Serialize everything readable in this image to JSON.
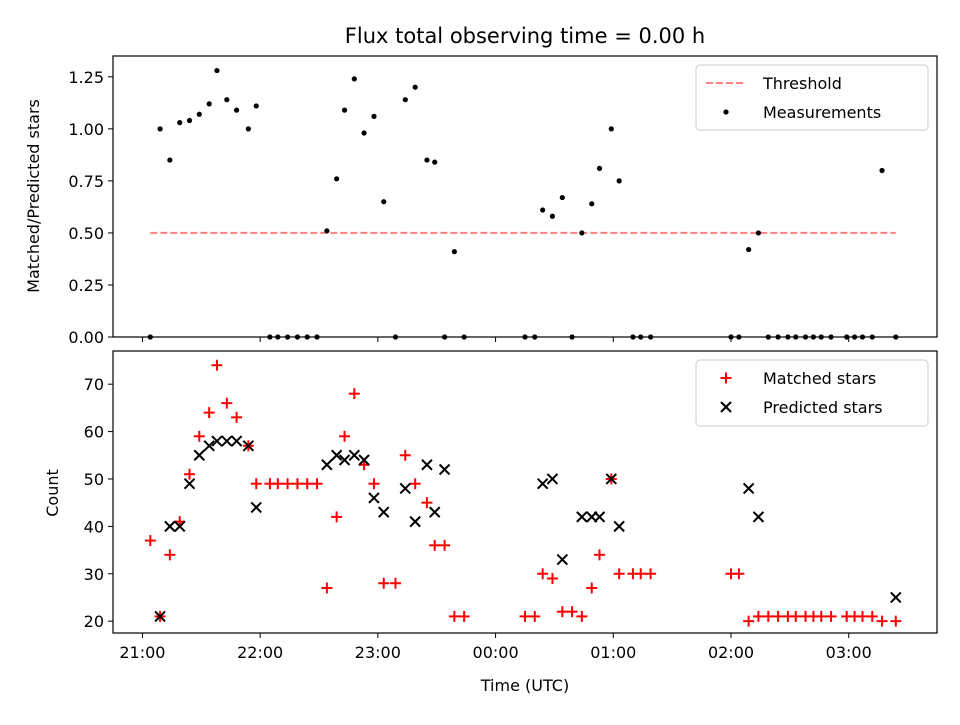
{
  "chart_data": [
    {
      "type": "scatter",
      "title": "Flux total observing time = 0.00 h",
      "xlabel": "",
      "ylabel": "Matched/Predicted stars",
      "ylim": [
        0,
        1.35
      ],
      "yticks": [
        "0.00",
        "0.25",
        "0.50",
        "0.75",
        "1.00",
        "1.25"
      ],
      "ytick_values": [
        0,
        0.25,
        0.5,
        0.75,
        1.0,
        1.25
      ],
      "xlim": [
        20.75,
        27.75
      ],
      "xticks_hours": [
        21,
        22,
        23,
        24,
        25,
        26,
        27
      ],
      "legend_position": "top-right",
      "threshold": {
        "name": "Threshold",
        "y": 0.5,
        "x_start": 21.067,
        "x_end": 27.4,
        "color": "#ff8080"
      },
      "series": [
        {
          "name": "Measurements",
          "color": "#000000",
          "x": [
            21.067,
            21.15,
            21.233,
            21.317,
            21.4,
            21.483,
            21.567,
            21.633,
            21.717,
            21.8,
            21.9,
            21.967,
            22.083,
            22.15,
            22.233,
            22.317,
            22.4,
            22.483,
            22.567,
            22.65,
            22.717,
            22.8,
            22.883,
            22.967,
            23.05,
            23.15,
            23.233,
            23.317,
            23.417,
            23.483,
            23.567,
            23.65,
            23.733,
            24.25,
            24.333,
            24.4,
            24.483,
            24.567,
            24.65,
            24.733,
            24.817,
            24.883,
            24.983,
            25.05,
            25.167,
            25.233,
            25.317,
            26.0,
            26.067,
            26.15,
            26.233,
            26.317,
            26.4,
            26.483,
            26.55,
            26.633,
            26.7,
            26.767,
            26.85,
            26.983,
            27.05,
            27.117,
            27.2,
            27.283,
            27.4
          ],
          "y": [
            0,
            1.0,
            0.85,
            1.03,
            1.04,
            1.07,
            1.12,
            1.28,
            1.14,
            1.09,
            1.0,
            1.11,
            0,
            0,
            0,
            0,
            0,
            0,
            0.51,
            0.76,
            1.09,
            1.24,
            0.98,
            1.06,
            0.65,
            0,
            1.14,
            1.2,
            0.85,
            0.84,
            0,
            0.41,
            0,
            0,
            0,
            0.61,
            0.58,
            0.67,
            0,
            0.5,
            0.64,
            0.81,
            1.0,
            0.75,
            0,
            0,
            0,
            0,
            0,
            0.42,
            0.5,
            0,
            0,
            0,
            0,
            0,
            0,
            0,
            0,
            0,
            0,
            0,
            0,
            0.8,
            0
          ]
        }
      ]
    },
    {
      "type": "scatter",
      "title": "",
      "xlabel": "Time (UTC)",
      "ylabel": "Count",
      "ylim": [
        17.5,
        77
      ],
      "yticks": [
        "20",
        "30",
        "40",
        "50",
        "60",
        "70"
      ],
      "ytick_values": [
        20,
        30,
        40,
        50,
        60,
        70
      ],
      "xlim": [
        20.75,
        27.75
      ],
      "xticks": [
        "21:00",
        "22:00",
        "23:00",
        "00:00",
        "01:00",
        "02:00",
        "03:00"
      ],
      "xticks_hours": [
        21,
        22,
        23,
        24,
        25,
        26,
        27
      ],
      "legend_position": "top-right",
      "series": [
        {
          "name": "Matched stars",
          "marker": "+",
          "color": "#ff0000",
          "x": [
            21.067,
            21.15,
            21.233,
            21.317,
            21.4,
            21.483,
            21.567,
            21.633,
            21.717,
            21.8,
            21.9,
            21.967,
            22.083,
            22.15,
            22.233,
            22.317,
            22.4,
            22.483,
            22.567,
            22.65,
            22.717,
            22.8,
            22.883,
            22.967,
            23.05,
            23.15,
            23.233,
            23.317,
            23.417,
            23.483,
            23.567,
            23.65,
            23.733,
            24.25,
            24.333,
            24.4,
            24.483,
            24.567,
            24.65,
            24.733,
            24.817,
            24.883,
            24.983,
            25.05,
            25.167,
            25.233,
            25.317,
            26.0,
            26.067,
            26.15,
            26.233,
            26.317,
            26.4,
            26.483,
            26.55,
            26.633,
            26.7,
            26.767,
            26.85,
            26.983,
            27.05,
            27.117,
            27.2,
            27.283,
            27.4
          ],
          "y": [
            37,
            21,
            34,
            41,
            51,
            59,
            64,
            74,
            66,
            63,
            57,
            49,
            49,
            49,
            49,
            49,
            49,
            49,
            27,
            42,
            59,
            68,
            53,
            49,
            28,
            28,
            55,
            49,
            45,
            36,
            36,
            21,
            21,
            21,
            21,
            30,
            29,
            22,
            22,
            21,
            27,
            34,
            50,
            30,
            30,
            30,
            30,
            30,
            30,
            20,
            21,
            21,
            21,
            21,
            21,
            21,
            21,
            21,
            21,
            21,
            21,
            21,
            21,
            20,
            20
          ]
        },
        {
          "name": "Predicted stars",
          "marker": "x",
          "color": "#000000",
          "x": [
            21.15,
            21.233,
            21.317,
            21.4,
            21.483,
            21.567,
            21.633,
            21.717,
            21.8,
            21.9,
            21.967,
            22.567,
            22.65,
            22.717,
            22.8,
            22.883,
            22.967,
            23.05,
            23.233,
            23.317,
            23.417,
            23.483,
            23.567,
            24.4,
            24.483,
            24.567,
            24.733,
            24.817,
            24.883,
            24.983,
            25.05,
            26.15,
            26.233,
            27.4
          ],
          "y": [
            21,
            40,
            40,
            49,
            55,
            57,
            58,
            58,
            58,
            57,
            44,
            53,
            55,
            54,
            55,
            54,
            46,
            43,
            48,
            41,
            53,
            43,
            52,
            49,
            50,
            33,
            42,
            42,
            42,
            50,
            40,
            48,
            42,
            25
          ]
        }
      ]
    }
  ]
}
